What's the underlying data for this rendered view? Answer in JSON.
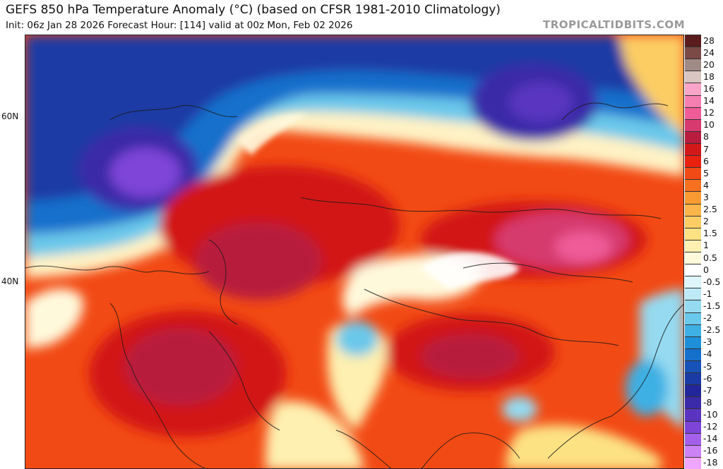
{
  "header": {
    "title": "GEFS 850 hPa Temperature Anomaly (°C) (based on CFSR 1981-2010 Climatology)",
    "subtitle": "Init: 06z Jan 28 2026   Forecast Hour: [114]   valid at 00z Mon, Feb 02 2026",
    "brand": "TROPICALTIDBITS.COM"
  },
  "latitude_labels": [
    "60N",
    "40N"
  ],
  "colorbar": {
    "levels": [
      {
        "label": "28",
        "color": "#5a1c1c"
      },
      {
        "label": "24",
        "color": "#7a4a46"
      },
      {
        "label": "20",
        "color": "#a08a86"
      },
      {
        "label": "18",
        "color": "#d9c6c2"
      },
      {
        "label": "16",
        "color": "#f9a4c8"
      },
      {
        "label": "14",
        "color": "#f57fb0"
      },
      {
        "label": "12",
        "color": "#ef5c98"
      },
      {
        "label": "10",
        "color": "#d63a6e"
      },
      {
        "label": "8",
        "color": "#b81c3e"
      },
      {
        "label": "7",
        "color": "#d21818"
      },
      {
        "label": "6",
        "color": "#e8220f"
      },
      {
        "label": "5",
        "color": "#f24a14"
      },
      {
        "label": "4",
        "color": "#f77020"
      },
      {
        "label": "3",
        "color": "#fa9a32"
      },
      {
        "label": "2.5",
        "color": "#fbb548"
      },
      {
        "label": "2",
        "color": "#fccd64"
      },
      {
        "label": "1.5",
        "color": "#fde284"
      },
      {
        "label": "1",
        "color": "#fef0b0"
      },
      {
        "label": "0.5",
        "color": "#fff9dc"
      },
      {
        "label": "0",
        "color": "#ffffff"
      },
      {
        "label": "-0.5",
        "color": "#def6fb"
      },
      {
        "label": "-1",
        "color": "#bdeaf6"
      },
      {
        "label": "-1.5",
        "color": "#95daf0"
      },
      {
        "label": "-2",
        "color": "#6ac8ea"
      },
      {
        "label": "-2.5",
        "color": "#3eb0e4"
      },
      {
        "label": "-3",
        "color": "#1e90da"
      },
      {
        "label": "-4",
        "color": "#1570cc"
      },
      {
        "label": "-5",
        "color": "#1652b8"
      },
      {
        "label": "-6",
        "color": "#1a3aa4"
      },
      {
        "label": "-7",
        "color": "#22269a"
      },
      {
        "label": "-8",
        "color": "#3a2aa8"
      },
      {
        "label": "-10",
        "color": "#5a34c0"
      },
      {
        "label": "-12",
        "color": "#7e44d8"
      },
      {
        "label": "-14",
        "color": "#a460ea"
      },
      {
        "label": "-16",
        "color": "#cc82f4"
      },
      {
        "label": "-18",
        "color": "#f0a6ff"
      }
    ]
  }
}
